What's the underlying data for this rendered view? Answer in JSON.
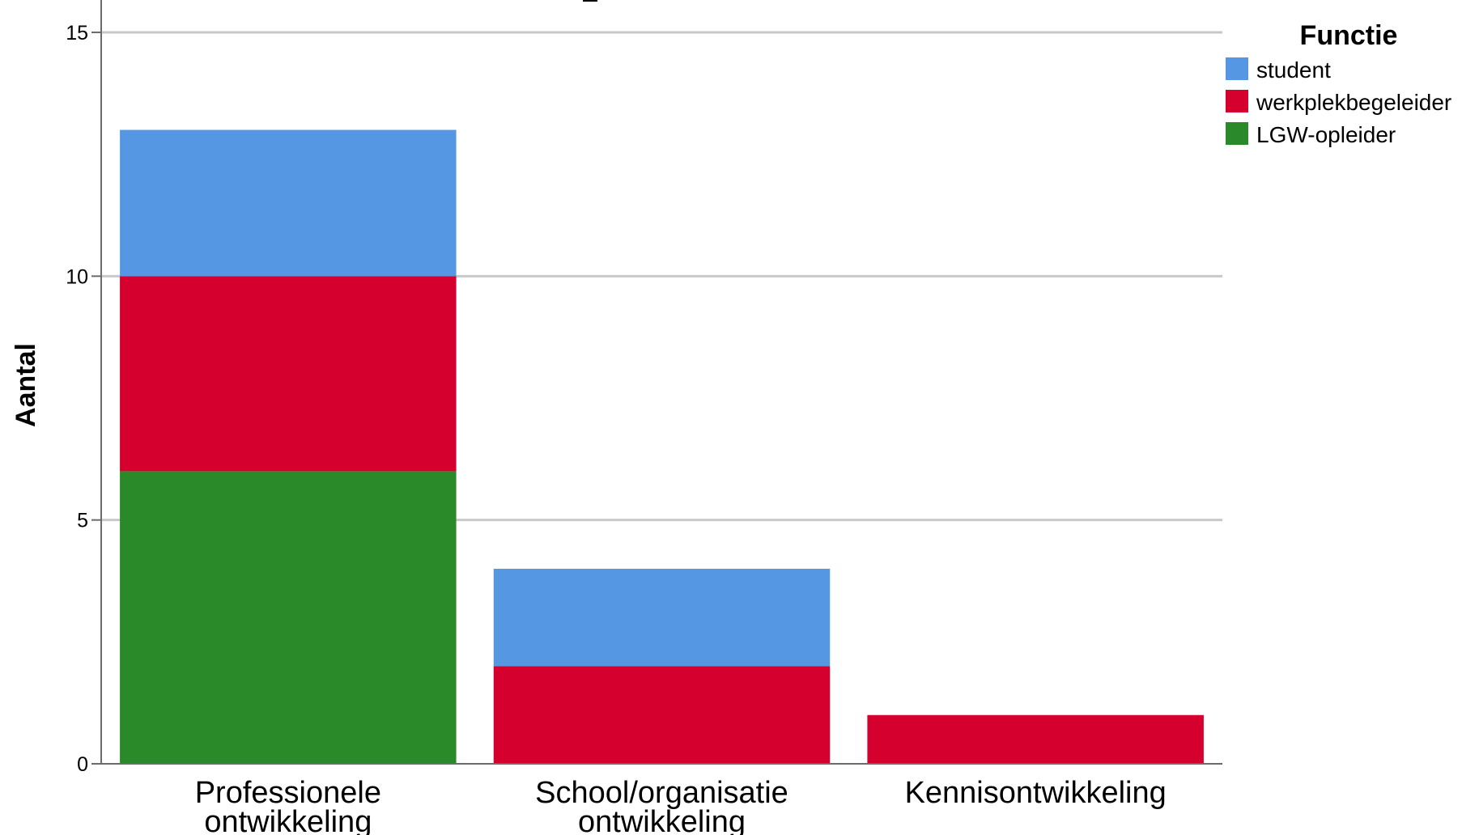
{
  "chart_data": {
    "type": "bar",
    "stacked": true,
    "title": "",
    "xlabel": "",
    "ylabel": "Aantal",
    "ylim": [
      0,
      15
    ],
    "yticks": [
      "0",
      "5",
      "10",
      "15"
    ],
    "grid": true,
    "legend": {
      "title": "Functie",
      "position": "top-right"
    },
    "categories": [
      [
        "Professionele",
        "ontwikkeling"
      ],
      [
        "School/organisatie",
        "ontwikkeling"
      ],
      [
        "Kennisontwikkeling"
      ]
    ],
    "series": [
      {
        "name": "student",
        "color": "#5697E3",
        "values": [
          3,
          2,
          0
        ]
      },
      {
        "name": "werkplekbegeleider",
        "color": "#D6002E",
        "values": [
          4,
          2,
          1
        ]
      },
      {
        "name": "LGW-opleider",
        "color": "#2A8A2A",
        "values": [
          6,
          0,
          0
        ]
      }
    ]
  }
}
